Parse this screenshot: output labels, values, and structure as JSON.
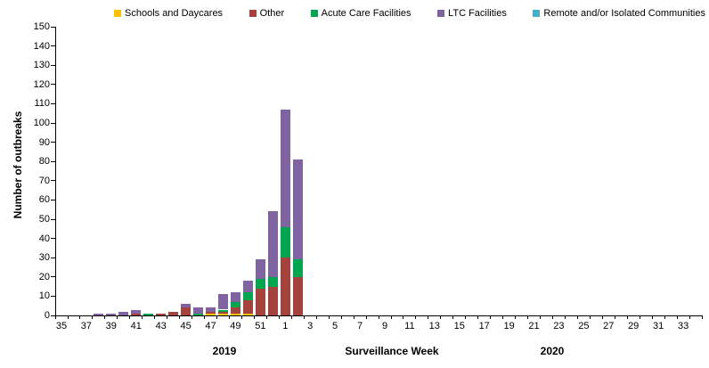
{
  "chart_data": {
    "type": "bar",
    "stacked": true,
    "title": "",
    "xlabel": "Surveillance Week",
    "ylabel": "Number of outbreaks",
    "ylim": [
      0,
      150
    ],
    "ytick_step": 10,
    "grid": false,
    "legend_position": "top",
    "x_labels_every": 2,
    "year_labels": [
      "2019",
      "2020"
    ],
    "categories": [
      "35",
      "36",
      "37",
      "38",
      "39",
      "40",
      "41",
      "42",
      "43",
      "44",
      "45",
      "46",
      "47",
      "48",
      "49",
      "50",
      "51",
      "52",
      "1",
      "2",
      "3",
      "4",
      "5",
      "6",
      "7",
      "8",
      "9",
      "10",
      "11",
      "12",
      "13",
      "14",
      "15",
      "16",
      "17",
      "18",
      "19",
      "20",
      "21",
      "22",
      "23",
      "24",
      "25",
      "26",
      "27",
      "28",
      "29",
      "30",
      "31",
      "32",
      "33",
      "34"
    ],
    "series": [
      {
        "name": "Schools and Daycares",
        "color": "#FFC000",
        "values": [
          0,
          0,
          0,
          0,
          0,
          0,
          0,
          0,
          0,
          0,
          0,
          0,
          1,
          1,
          1,
          1,
          0,
          0,
          0,
          0,
          0,
          0,
          0,
          0,
          0,
          0,
          0,
          0,
          0,
          0,
          0,
          0,
          0,
          0,
          0,
          0,
          0,
          0,
          0,
          0,
          0,
          0,
          0,
          0,
          0,
          0,
          0,
          0,
          0,
          0,
          0,
          0
        ]
      },
      {
        "name": "Other",
        "color": "#A6423E",
        "values": [
          0,
          0,
          0,
          0,
          0,
          0,
          1,
          0,
          1,
          2,
          4,
          0,
          1,
          1,
          3,
          7,
          14,
          15,
          30,
          20,
          0,
          0,
          0,
          0,
          0,
          0,
          0,
          0,
          0,
          0,
          0,
          0,
          0,
          0,
          0,
          0,
          0,
          0,
          0,
          0,
          0,
          0,
          0,
          0,
          0,
          0,
          0,
          0,
          0,
          0,
          0,
          0
        ]
      },
      {
        "name": "Acute Care Facilities",
        "color": "#00A550",
        "values": [
          0,
          0,
          0,
          0,
          0,
          0,
          0,
          1,
          0,
          0,
          0,
          1,
          0,
          1,
          3,
          4,
          5,
          5,
          16,
          9,
          0,
          0,
          0,
          0,
          0,
          0,
          0,
          0,
          0,
          0,
          0,
          0,
          0,
          0,
          0,
          0,
          0,
          0,
          0,
          0,
          0,
          0,
          0,
          0,
          0,
          0,
          0,
          0,
          0,
          0,
          0,
          0
        ]
      },
      {
        "name": "LTC Facilities",
        "color": "#8064A2",
        "values": [
          0,
          0,
          0,
          1,
          1,
          2,
          2,
          0,
          0,
          0,
          2,
          3,
          2,
          8,
          5,
          6,
          10,
          34,
          61,
          52,
          0,
          0,
          0,
          0,
          0,
          0,
          0,
          0,
          0,
          0,
          0,
          0,
          0,
          0,
          0,
          0,
          0,
          0,
          0,
          0,
          0,
          0,
          0,
          0,
          0,
          0,
          0,
          0,
          0,
          0,
          0,
          0
        ]
      },
      {
        "name": "Remote and/or Isolated Communities",
        "color": "#4BACC6",
        "values": [
          0,
          0,
          0,
          0,
          0,
          0,
          0,
          0,
          0,
          0,
          0,
          0,
          0,
          0,
          0,
          0,
          0,
          0,
          0,
          0,
          0,
          0,
          0,
          0,
          0,
          0,
          0,
          0,
          0,
          0,
          0,
          0,
          0,
          0,
          0,
          0,
          0,
          0,
          0,
          0,
          0,
          0,
          0,
          0,
          0,
          0,
          0,
          0,
          0,
          0,
          0,
          0
        ]
      }
    ]
  }
}
